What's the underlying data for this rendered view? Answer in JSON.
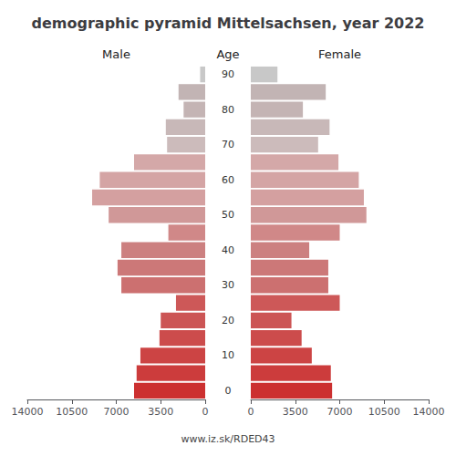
{
  "chart_data": {
    "type": "bar",
    "orientation": "horizontal",
    "title": "demographic pyramid Mittelsachsen, year 2022",
    "ylabel": "Age",
    "categories": [
      90,
      null,
      80,
      null,
      70,
      null,
      60,
      null,
      50,
      null,
      40,
      null,
      30,
      null,
      20,
      null,
      10,
      null,
      0
    ],
    "series": [
      {
        "name": "Male",
        "values": [
          400,
          2100,
          1700,
          3100,
          3000,
          5600,
          8300,
          8900,
          7600,
          2900,
          6600,
          6900,
          6600,
          2300,
          3500,
          3600,
          5100,
          5400,
          5600
        ],
        "colors": [
          "#c8c8c8",
          "#c2b4b4",
          "#c4b4b4",
          "#c8b8b8",
          "#ccbbbb",
          "#d4a8a8",
          "#d4a4a4",
          "#d4a0a0",
          "#d09898",
          "#d08888",
          "#cc8080",
          "#cc7878",
          "#cc7070",
          "#cd5858",
          "#cc5555",
          "#cc4c4c",
          "#cc4444",
          "#cc3c3c",
          "#cc3030"
        ]
      },
      {
        "name": "Female",
        "values": [
          2100,
          5900,
          4100,
          6200,
          5300,
          6900,
          8500,
          8900,
          9100,
          7000,
          4600,
          6100,
          6100,
          7000,
          3200,
          4000,
          4800,
          6300,
          6400
        ],
        "colors": [
          "#c8c8c8",
          "#c2b4b4",
          "#c4b4b4",
          "#c8b8b8",
          "#ccbbbb",
          "#d4a8a8",
          "#d4a4a4",
          "#d4a0a0",
          "#d09898",
          "#d08888",
          "#cc8080",
          "#cc7878",
          "#cc7070",
          "#cd5858",
          "#cc5555",
          "#cc4c4c",
          "#cc4444",
          "#cc3c3c",
          "#cc3030"
        ]
      }
    ],
    "xlim": [
      0,
      14000
    ],
    "xticks": [
      0,
      3500,
      7000,
      10500,
      14000
    ],
    "grid": false,
    "annotations": [
      "www.iz.sk/RDED43"
    ]
  }
}
